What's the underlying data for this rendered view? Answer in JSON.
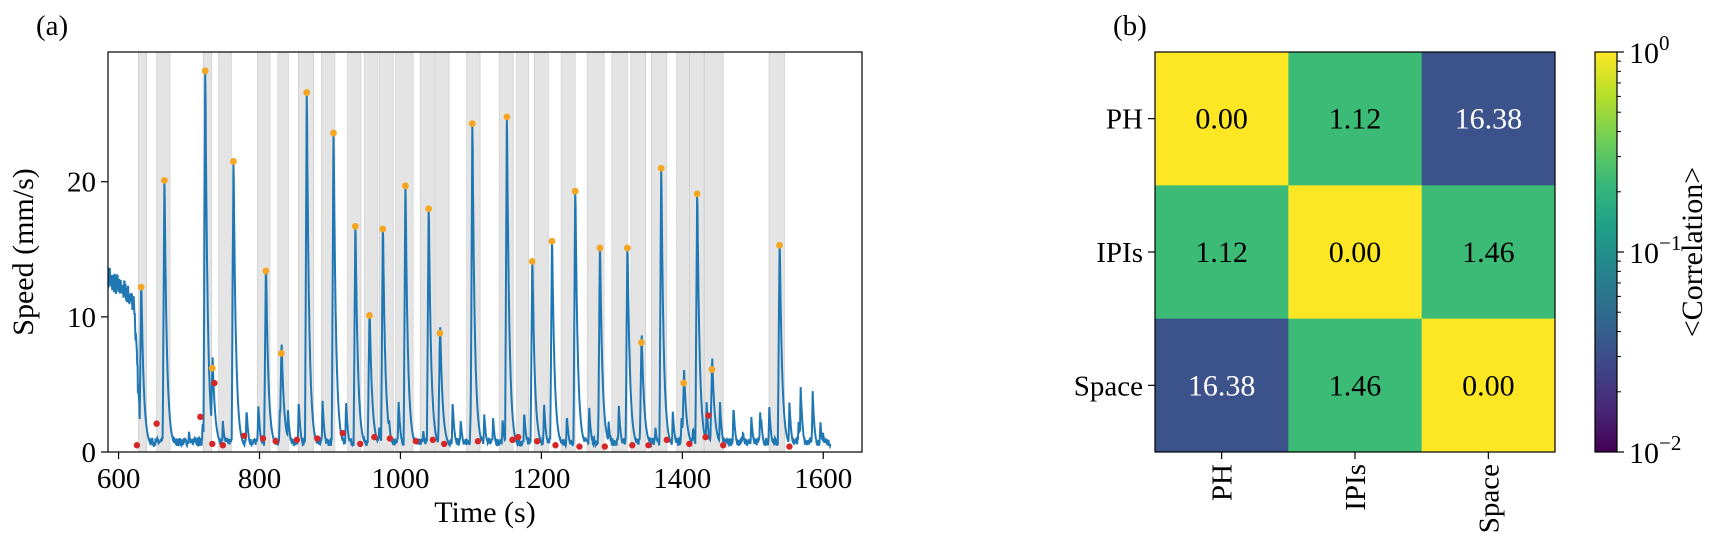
{
  "chart_data": [
    {
      "type": "line",
      "panel_label": "(a)",
      "xlabel": "Time (s)",
      "ylabel": "Speed (mm/s)",
      "xlim": [
        585,
        1655
      ],
      "ylim": [
        0,
        29.6
      ],
      "xticks": [
        600,
        800,
        1000,
        1200,
        1400,
        1600
      ],
      "yticks": [
        0,
        10,
        20
      ],
      "line_color": "#1f77b4",
      "peak_color": "#f5a623",
      "trough_color": "#d62728",
      "band_color": "#d9d9d9",
      "shaded_intervals": [
        [
          628,
          640
        ],
        [
          654,
          673
        ],
        [
          720,
          732
        ],
        [
          742,
          760
        ],
        [
          797,
          815
        ],
        [
          826,
          841
        ],
        [
          855,
          877
        ],
        [
          888,
          907
        ],
        [
          925,
          944
        ],
        [
          949,
          968
        ],
        [
          970,
          990
        ],
        [
          993,
          1018
        ],
        [
          1028,
          1048
        ],
        [
          1050,
          1069
        ],
        [
          1094,
          1113
        ],
        [
          1140,
          1160
        ],
        [
          1165,
          1182
        ],
        [
          1190,
          1210
        ],
        [
          1228,
          1248
        ],
        [
          1265,
          1289
        ],
        [
          1300,
          1322
        ],
        [
          1327,
          1348
        ],
        [
          1356,
          1378
        ],
        [
          1392,
          1410
        ],
        [
          1410,
          1431
        ],
        [
          1431,
          1458
        ],
        [
          1523,
          1545
        ]
      ],
      "peaks": [
        {
          "t": 632,
          "v": 12.2
        },
        {
          "t": 665,
          "v": 20.1
        },
        {
          "t": 723,
          "v": 28.2
        },
        {
          "t": 733,
          "v": 6.2
        },
        {
          "t": 763,
          "v": 21.5
        },
        {
          "t": 809,
          "v": 13.4
        },
        {
          "t": 831,
          "v": 7.3
        },
        {
          "t": 867,
          "v": 26.6
        },
        {
          "t": 905,
          "v": 23.6
        },
        {
          "t": 936,
          "v": 16.7
        },
        {
          "t": 956,
          "v": 10.1
        },
        {
          "t": 975,
          "v": 16.5
        },
        {
          "t": 1007,
          "v": 19.7
        },
        {
          "t": 1040,
          "v": 18.0
        },
        {
          "t": 1056,
          "v": 8.8
        },
        {
          "t": 1102,
          "v": 24.3
        },
        {
          "t": 1151,
          "v": 24.8
        },
        {
          "t": 1187,
          "v": 14.1
        },
        {
          "t": 1215,
          "v": 15.6
        },
        {
          "t": 1248,
          "v": 19.3
        },
        {
          "t": 1283,
          "v": 15.1
        },
        {
          "t": 1322,
          "v": 15.1
        },
        {
          "t": 1342,
          "v": 8.1
        },
        {
          "t": 1370,
          "v": 21.0
        },
        {
          "t": 1402,
          "v": 5.1
        },
        {
          "t": 1421,
          "v": 19.1
        },
        {
          "t": 1442,
          "v": 6.1
        },
        {
          "t": 1538,
          "v": 15.3
        }
      ],
      "troughs": [
        {
          "t": 626,
          "v": 0.5
        },
        {
          "t": 654,
          "v": 2.1
        },
        {
          "t": 716,
          "v": 2.6
        },
        {
          "t": 733,
          "v": 0.6
        },
        {
          "t": 736,
          "v": 5.1
        },
        {
          "t": 748,
          "v": 0.5
        },
        {
          "t": 778,
          "v": 1.2
        },
        {
          "t": 805,
          "v": 1.0
        },
        {
          "t": 823,
          "v": 0.8
        },
        {
          "t": 853,
          "v": 0.9
        },
        {
          "t": 882,
          "v": 1.0
        },
        {
          "t": 918,
          "v": 1.4
        },
        {
          "t": 943,
          "v": 0.6
        },
        {
          "t": 963,
          "v": 1.1
        },
        {
          "t": 985,
          "v": 1.0
        },
        {
          "t": 1022,
          "v": 0.8
        },
        {
          "t": 1046,
          "v": 0.9
        },
        {
          "t": 1062,
          "v": 0.6
        },
        {
          "t": 1110,
          "v": 0.8
        },
        {
          "t": 1159,
          "v": 0.9
        },
        {
          "t": 1167,
          "v": 1.1
        },
        {
          "t": 1194,
          "v": 0.8
        },
        {
          "t": 1220,
          "v": 0.5
        },
        {
          "t": 1254,
          "v": 0.4
        },
        {
          "t": 1290,
          "v": 0.4
        },
        {
          "t": 1329,
          "v": 0.5
        },
        {
          "t": 1352,
          "v": 0.5
        },
        {
          "t": 1378,
          "v": 0.9
        },
        {
          "t": 1410,
          "v": 0.6
        },
        {
          "t": 1433,
          "v": 1.1
        },
        {
          "t": 1437,
          "v": 2.7
        },
        {
          "t": 1458,
          "v": 0.5
        },
        {
          "t": 1552,
          "v": 0.4
        }
      ]
    },
    {
      "type": "heatmap",
      "panel_label": "(b)",
      "rows": [
        "PH",
        "IPIs",
        "Space"
      ],
      "cols": [
        "PH",
        "IPIs",
        "Space"
      ],
      "labels": [
        [
          "0.00",
          "1.12",
          "16.38"
        ],
        [
          "1.12",
          "0.00",
          "1.46"
        ],
        [
          "16.38",
          "1.46",
          "0.00"
        ]
      ],
      "cell_colors": [
        [
          "#fde725",
          "#3bbb75",
          "#3b528b"
        ],
        [
          "#3bbb75",
          "#fde725",
          "#3bbb75"
        ],
        [
          "#3b528b",
          "#3bbb75",
          "#fde725"
        ]
      ],
      "cell_text_colors": [
        [
          "#000000",
          "#000000",
          "#ffffff"
        ],
        [
          "#000000",
          "#000000",
          "#000000"
        ],
        [
          "#ffffff",
          "#000000",
          "#000000"
        ]
      ],
      "colorbar": {
        "label": "<Correlation>",
        "scale": "log",
        "range": [
          0.01,
          1
        ],
        "ticks": [
          {
            "base": "10",
            "exp": "0"
          },
          {
            "base": "10",
            "exp": "−1"
          },
          {
            "base": "10",
            "exp": "−2"
          }
        ],
        "colormap": [
          "#440154",
          "#482878",
          "#3e4989",
          "#31688e",
          "#26828e",
          "#1f9e89",
          "#35b779",
          "#6ece58",
          "#b5de2b",
          "#fde725"
        ]
      }
    }
  ]
}
